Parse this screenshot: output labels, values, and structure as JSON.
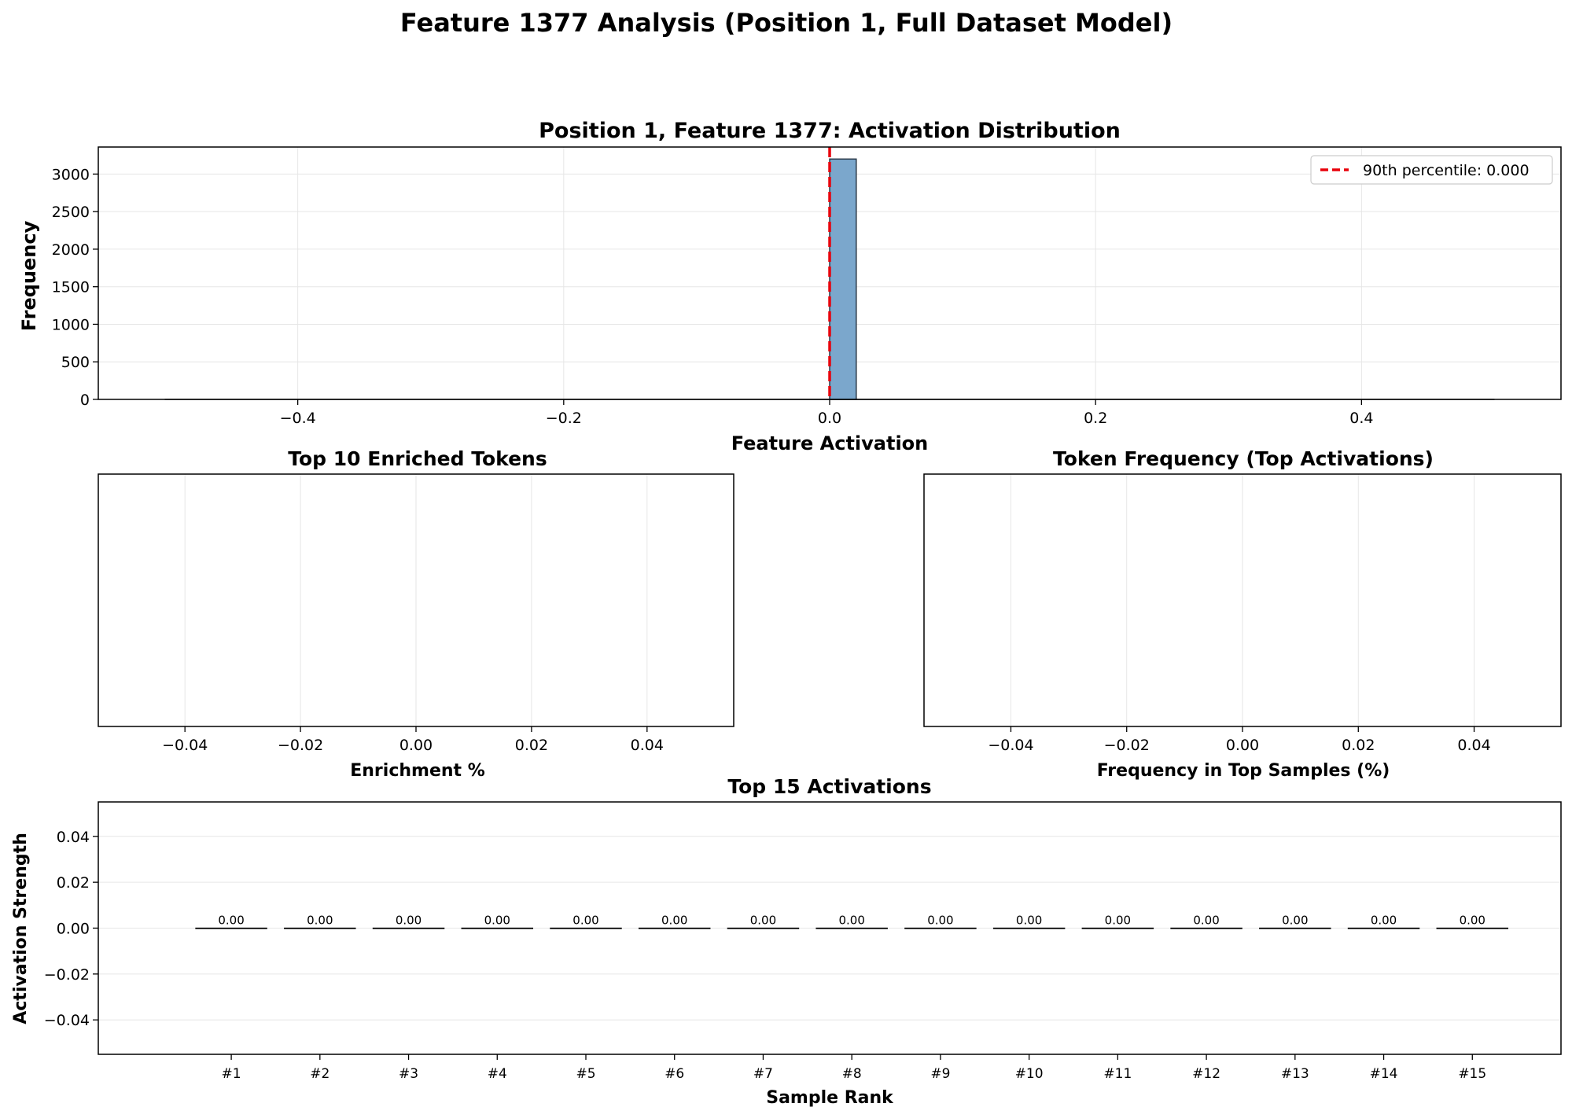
{
  "figure": {
    "suptitle": "Feature 1377 Analysis (Position 1, Full Dataset Model)"
  },
  "colors": {
    "hist_bar": "#7ba7cc",
    "percentile_line": "#e8000b",
    "axis": "#000000",
    "grid": "#e6e6e6"
  },
  "chart_data": [
    {
      "type": "bar",
      "title": "Position 1, Feature 1377: Activation Distribution",
      "xlabel": "Feature Activation",
      "ylabel": "Frequency",
      "xlim": [
        -0.55,
        0.55
      ],
      "ylim": [
        0,
        3360
      ],
      "xticks": [
        -0.4,
        -0.2,
        0.0,
        0.2,
        0.4
      ],
      "xtick_labels": [
        "−0.4",
        "−0.2",
        "0.0",
        "0.2",
        "0.4"
      ],
      "yticks": [
        0,
        500,
        1000,
        1500,
        2000,
        2500,
        3000
      ],
      "ytick_labels": [
        "0",
        "500",
        "1000",
        "1500",
        "2000",
        "2500",
        "3000"
      ],
      "bins": [
        {
          "x0": 0.0,
          "x1": 0.02,
          "count": 3200
        }
      ],
      "percentile_line": {
        "value": 0.0,
        "label": "90th percentile: 0.000"
      },
      "legend": "top-right",
      "grid": true
    },
    {
      "type": "bar",
      "title": "Top 10 Enriched Tokens",
      "xlabel": "Enrichment %",
      "ylabel": "",
      "xlim": [
        -0.055,
        0.055
      ],
      "xticks": [
        -0.04,
        -0.02,
        0.0,
        0.02,
        0.04
      ],
      "xtick_labels": [
        "−0.04",
        "−0.02",
        "0.00",
        "0.02",
        "0.04"
      ],
      "categories": [],
      "values": [],
      "grid": true
    },
    {
      "type": "bar",
      "title": "Token Frequency (Top Activations)",
      "xlabel": "Frequency in Top Samples (%)",
      "ylabel": "",
      "xlim": [
        -0.055,
        0.055
      ],
      "xticks": [
        -0.04,
        -0.02,
        0.0,
        0.02,
        0.04
      ],
      "xtick_labels": [
        "−0.04",
        "−0.02",
        "0.00",
        "0.02",
        "0.04"
      ],
      "categories": [],
      "values": [],
      "grid": true
    },
    {
      "type": "bar",
      "title": "Top 15 Activations",
      "xlabel": "Sample Rank",
      "ylabel": "Activation Strength",
      "ylim": [
        -0.055,
        0.055
      ],
      "yticks": [
        -0.04,
        -0.02,
        0.0,
        0.02,
        0.04
      ],
      "ytick_labels": [
        "−0.04",
        "−0.02",
        "0.00",
        "0.02",
        "0.04"
      ],
      "categories": [
        "#1",
        "#2",
        "#3",
        "#4",
        "#5",
        "#6",
        "#7",
        "#8",
        "#9",
        "#10",
        "#11",
        "#12",
        "#13",
        "#14",
        "#15"
      ],
      "values": [
        0,
        0,
        0,
        0,
        0,
        0,
        0,
        0,
        0,
        0,
        0,
        0,
        0,
        0,
        0
      ],
      "value_labels": [
        "0.00",
        "0.00",
        "0.00",
        "0.00",
        "0.00",
        "0.00",
        "0.00",
        "0.00",
        "0.00",
        "0.00",
        "0.00",
        "0.00",
        "0.00",
        "0.00",
        "0.00"
      ],
      "grid": true
    }
  ]
}
